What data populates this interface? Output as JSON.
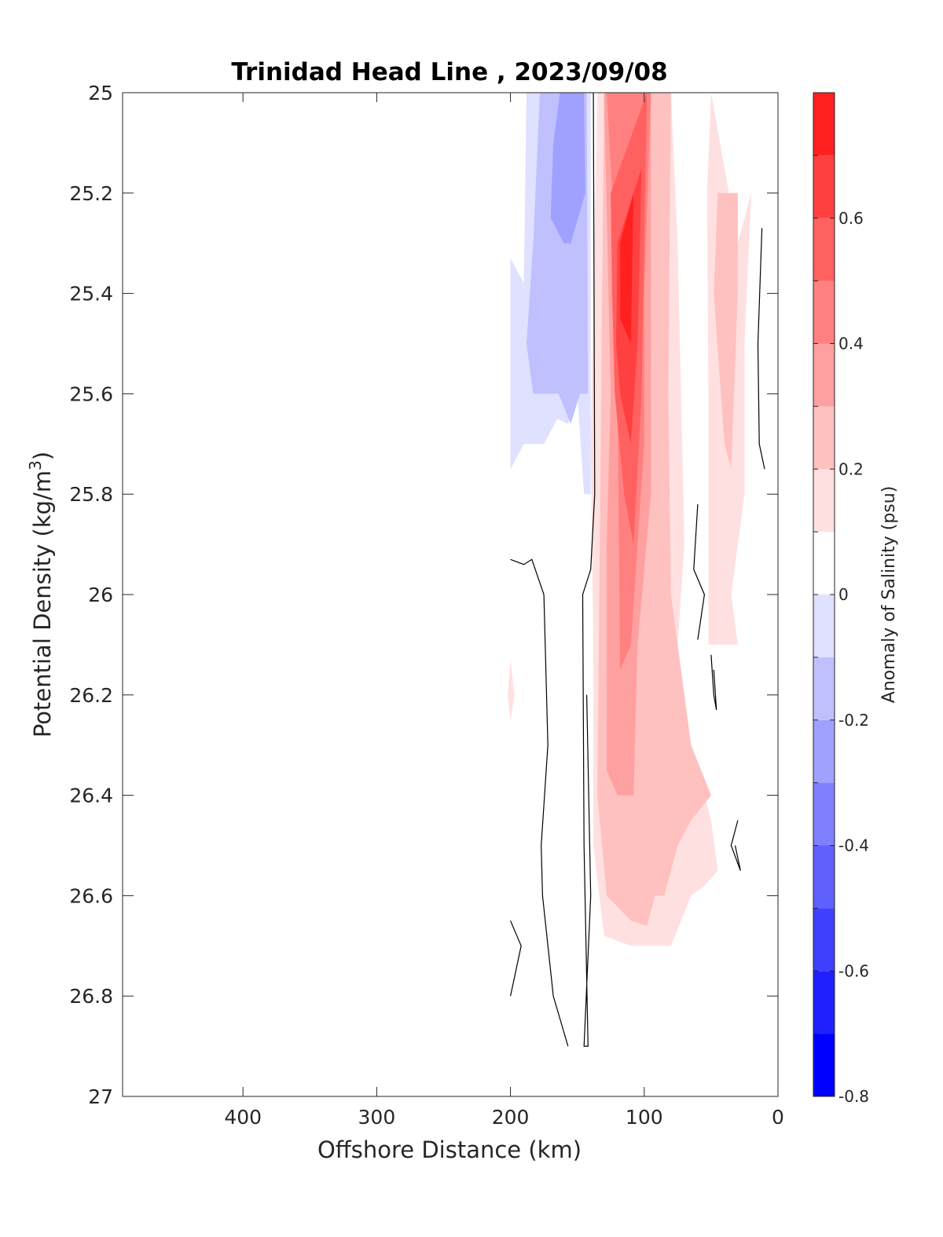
{
  "chart_data": {
    "type": "contourf",
    "title": "Trinidad Head Line , 2023/09/08",
    "xlabel": "Offshore Distance (km)",
    "ylabel": "Potential Density (kg/m",
    "ylabel_superscript": "3",
    "ylabel_suffix": ")",
    "x_reversed": true,
    "y_reversed": true,
    "xlim": [
      0,
      490
    ],
    "ylim": [
      25,
      27
    ],
    "x_ticks": [
      400,
      300,
      200,
      100,
      0
    ],
    "y_ticks": [
      25,
      25.2,
      25.4,
      25.6,
      25.8,
      26,
      26.2,
      26.4,
      26.6,
      26.8,
      27
    ],
    "y_tick_labels": [
      "25",
      "25.2",
      "25.4",
      "25.6",
      "25.8",
      "26",
      "26.2",
      "26.4",
      "26.6",
      "26.8",
      "27"
    ],
    "colorbar": {
      "label": "Anomaly of Salinity (psu)",
      "min": -0.8,
      "max": 0.8,
      "step": 0.1,
      "ticks": [
        0.6,
        0.4,
        0.2,
        0,
        -0.2,
        -0.4,
        -0.6,
        -0.8
      ],
      "tick_labels": [
        "0.6",
        "0.4",
        "0.2",
        "0",
        "-0.2",
        "-0.4",
        "-0.6",
        "-0.8"
      ],
      "colors": [
        "#0000ff",
        "#2020ff",
        "#4040ff",
        "#6060ff",
        "#8080ff",
        "#a0a0ff",
        "#c0c0ff",
        "#e0e0ff",
        "#ffffff",
        "#ffe0e0",
        "#ffc0c0",
        "#ffa0a0",
        "#ff8080",
        "#ff6060",
        "#ff4040",
        "#ff2020"
      ]
    },
    "filled_regions": [
      {
        "level": -0.2,
        "color": "#e0e0ff",
        "points": [
          [
            188,
            25
          ],
          [
            140,
            25
          ],
          [
            140,
            25.8
          ],
          [
            145,
            25.8
          ],
          [
            150,
            25.6
          ],
          [
            157,
            25.66
          ],
          [
            165,
            25.65
          ],
          [
            175,
            25.7
          ],
          [
            190,
            25.7
          ],
          [
            200,
            25.75
          ],
          [
            200,
            25.33
          ],
          [
            190,
            25.38
          ]
        ]
      },
      {
        "level": -0.3,
        "color": "#c0c0ff",
        "points": [
          [
            170,
            25
          ],
          [
            143,
            25
          ],
          [
            142,
            25.6
          ],
          [
            148,
            25.6
          ],
          [
            155,
            25.66
          ],
          [
            164,
            25.6
          ],
          [
            172,
            25.6
          ],
          [
            183,
            25.6
          ],
          [
            188,
            25.5
          ],
          [
            183,
            25.3
          ],
          [
            178,
            25
          ]
        ]
      },
      {
        "level": -0.4,
        "color": "#a0a0ff",
        "points": [
          [
            163,
            25
          ],
          [
            145,
            25
          ],
          [
            144,
            25.2
          ],
          [
            155,
            25.3
          ],
          [
            160,
            25.3
          ],
          [
            170,
            25.25
          ],
          [
            168,
            25.1
          ]
        ]
      },
      {
        "level": 0.1,
        "color": "#ffe0e0",
        "points": [
          [
            135,
            25
          ],
          [
            80,
            25
          ],
          [
            75,
            25.3
          ],
          [
            70,
            25.9
          ],
          [
            75,
            26.1
          ],
          [
            65,
            26.3
          ],
          [
            50,
            26.45
          ],
          [
            45,
            26.55
          ],
          [
            55,
            26.58
          ],
          [
            65,
            26.6
          ],
          [
            80,
            26.7
          ],
          [
            110,
            26.7
          ],
          [
            130,
            26.68
          ],
          [
            138,
            26.5
          ],
          [
            138,
            26.1
          ],
          [
            140,
            25.7
          ],
          [
            138,
            25.4
          ]
        ]
      },
      {
        "level": 0.1,
        "color": "#ffe0e0",
        "points": [
          [
            50,
            25
          ],
          [
            30,
            25.3
          ],
          [
            20,
            25.2
          ],
          [
            25,
            25.5
          ],
          [
            25,
            25.8
          ],
          [
            35,
            26.0
          ],
          [
            30,
            26.1
          ],
          [
            52,
            26.1
          ],
          [
            52,
            25.6
          ],
          [
            53,
            25.2
          ]
        ]
      },
      {
        "level": 0.1,
        "color": "#ffe0e0",
        "points": [
          [
            200,
            26.13
          ],
          [
            197,
            26.2
          ],
          [
            200,
            26.25
          ],
          [
            202,
            26.2
          ]
        ]
      },
      {
        "level": 0.2,
        "color": "#ffc0c0",
        "points": [
          [
            130,
            25
          ],
          [
            80,
            25
          ],
          [
            82,
            25.6
          ],
          [
            80,
            26.0
          ],
          [
            65,
            26.3
          ],
          [
            50,
            26.4
          ],
          [
            65,
            26.45
          ],
          [
            75,
            26.5
          ],
          [
            85,
            26.6
          ],
          [
            92,
            26.6
          ],
          [
            98,
            26.66
          ],
          [
            110,
            26.65
          ],
          [
            128,
            26.6
          ],
          [
            135,
            26.4
          ]
        ]
      },
      {
        "level": 0.2,
        "color": "#ffc0c0",
        "points": [
          [
            45,
            25.2
          ],
          [
            30,
            25.2
          ],
          [
            30,
            25.4
          ],
          [
            35,
            25.75
          ],
          [
            40,
            25.7
          ],
          [
            48,
            25.4
          ]
        ]
      },
      {
        "level": 0.3,
        "color": "#ffa0a0",
        "points": [
          [
            130,
            25
          ],
          [
            95,
            25
          ],
          [
            95,
            25.3
          ],
          [
            95,
            25.6
          ],
          [
            95,
            25.8
          ],
          [
            105,
            26.1
          ],
          [
            108,
            26.4
          ],
          [
            120,
            26.4
          ],
          [
            128,
            26.35
          ],
          [
            128,
            25.9
          ],
          [
            125,
            25.6
          ]
        ]
      },
      {
        "level": 0.4,
        "color": "#ff8080",
        "points": [
          [
            128,
            25
          ],
          [
            95,
            25
          ],
          [
            100,
            25.4
          ],
          [
            100,
            25.7
          ],
          [
            105,
            25.9
          ],
          [
            110,
            26.1
          ],
          [
            118,
            26.15
          ],
          [
            120,
            25.6
          ],
          [
            124,
            25.2
          ]
        ]
      },
      {
        "level": 0.5,
        "color": "#ff6060",
        "points": [
          [
            125,
            25.2
          ],
          [
            98,
            25
          ],
          [
            102,
            25.6
          ],
          [
            108,
            25.9
          ],
          [
            115,
            25.8
          ],
          [
            122,
            25.6
          ],
          [
            124,
            25.4
          ]
        ]
      },
      {
        "level": 0.6,
        "color": "#ff4040",
        "points": [
          [
            120,
            25.3
          ],
          [
            102,
            25.15
          ],
          [
            105,
            25.5
          ],
          [
            110,
            25.7
          ],
          [
            118,
            25.6
          ],
          [
            121,
            25.5
          ]
        ]
      },
      {
        "level": 0.7,
        "color": "#ff2020",
        "points": [
          [
            118,
            25.3
          ],
          [
            108,
            25.2
          ],
          [
            110,
            25.5
          ],
          [
            118,
            25.45
          ]
        ]
      }
    ],
    "zero_contours": [
      {
        "points": [
          [
            140,
            25
          ],
          [
            138,
            25
          ],
          [
            137,
            25.8
          ],
          [
            140,
            25.95
          ],
          [
            146,
            26.0
          ],
          [
            145,
            26.5
          ],
          [
            142,
            26.9
          ],
          [
            145,
            26.9
          ],
          [
            140,
            26.6
          ],
          [
            143,
            26.2
          ]
        ]
      },
      {
        "points": [
          [
            200,
            25.93
          ],
          [
            190,
            25.94
          ],
          [
            184,
            25.93
          ],
          [
            175,
            26.0
          ],
          [
            172,
            26.3
          ],
          [
            177,
            26.5
          ],
          [
            176,
            26.6
          ],
          [
            168,
            26.8
          ],
          [
            157,
            26.9
          ]
        ]
      },
      {
        "points": [
          [
            200,
            26.65
          ],
          [
            192,
            26.7
          ],
          [
            200,
            26.8
          ]
        ]
      },
      {
        "points": [
          [
            12,
            25.27
          ],
          [
            15,
            25.5
          ],
          [
            14,
            25.7
          ],
          [
            10,
            25.75
          ]
        ]
      },
      {
        "points": [
          [
            60,
            25.82
          ],
          [
            63,
            25.95
          ],
          [
            55,
            26.0
          ],
          [
            60,
            26.09
          ]
        ]
      },
      {
        "points": [
          [
            50,
            26.12
          ],
          [
            48,
            26.2
          ],
          [
            46,
            26.23
          ],
          [
            48,
            26.15
          ]
        ]
      },
      {
        "points": [
          [
            30,
            26.45
          ],
          [
            35,
            26.5
          ],
          [
            28,
            26.55
          ],
          [
            32,
            26.5
          ]
        ]
      }
    ]
  }
}
